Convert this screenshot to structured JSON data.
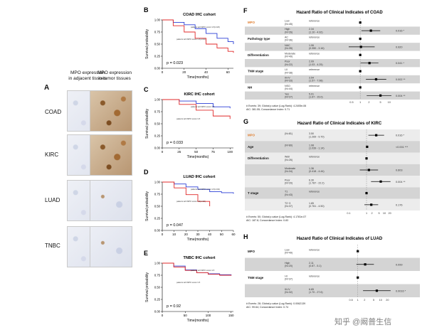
{
  "panelA": {
    "letter": "A",
    "col_adjacent": "MPO expression\nin adjacent tissues",
    "col_tumor": "MPO expression\nin tumor tissues",
    "rows": [
      "COAD",
      "KIRC",
      "LUAD",
      "TNBC"
    ]
  },
  "km": [
    {
      "letter": "B",
      "title": "COAD IHC cohort",
      "ylabel": "Survival probability",
      "xlabel": "Time(months)",
      "pvalue": "p = 0.023",
      "xticks": [
        "0",
        "20",
        "40",
        "60"
      ],
      "yticks": [
        "0.00",
        "0.25",
        "0.50",
        "0.75",
        "1.00"
      ],
      "legend_blue": "patients with MPO score>1.5(n=26)",
      "legend_red": "patients with MPO score<1.5(n=45)",
      "chart_data": {
        "type": "line",
        "xlim": [
          0,
          65
        ],
        "ylim": [
          0,
          1
        ],
        "series": [
          {
            "color": "#2b3fd6",
            "x": [
              0,
              10,
              20,
              30,
              40,
              50,
              60,
              65
            ],
            "y": [
              1.0,
              0.95,
              0.9,
              0.82,
              0.72,
              0.62,
              0.55,
              0.5
            ]
          },
          {
            "color": "#e02828",
            "x": [
              0,
              10,
              20,
              30,
              40,
              50,
              60,
              65
            ],
            "y": [
              1.0,
              0.88,
              0.75,
              0.62,
              0.5,
              0.42,
              0.35,
              0.32
            ]
          }
        ]
      }
    },
    {
      "letter": "C",
      "title": "KIRC IHC cohort",
      "ylabel": "Survival probability",
      "xlabel": "Time(months)",
      "pvalue": "p = 0.033",
      "xticks": [
        "0",
        "25",
        "50",
        "75",
        "100"
      ],
      "yticks": [
        "0.00",
        "0.25",
        "0.50",
        "0.75",
        "1.00"
      ],
      "legend_blue": "patients with MPO score>1.5",
      "legend_red": "patients with MPO score<1.5",
      "chart_data": {
        "type": "line",
        "xlim": [
          0,
          105
        ],
        "ylim": [
          0,
          1
        ],
        "series": [
          {
            "color": "#2b3fd6",
            "x": [
              0,
              25,
              50,
              75,
              100
            ],
            "y": [
              1.0,
              0.97,
              0.92,
              0.85,
              0.82
            ]
          },
          {
            "color": "#e02828",
            "x": [
              0,
              25,
              50,
              75,
              100
            ],
            "y": [
              1.0,
              0.9,
              0.78,
              0.66,
              0.6
            ]
          }
        ]
      }
    },
    {
      "letter": "D",
      "title": "LUAD IHC cohort",
      "ylabel": "Survival probability",
      "xlabel": "Time(months)",
      "pvalue": "p = 0.047",
      "xticks": [
        "0",
        "10",
        "20",
        "30",
        "40",
        "50",
        "60"
      ],
      "yticks": [
        "0.00",
        "0.25",
        "0.50",
        "0.75",
        "1.00"
      ],
      "legend_blue": "patients with MPO score>1.5(n=49)",
      "legend_red": "patients with MPO score<1.5(n=20)",
      "chart_data": {
        "type": "line",
        "xlim": [
          0,
          60
        ],
        "ylim": [
          0,
          1
        ],
        "series": [
          {
            "color": "#2b3fd6",
            "x": [
              0,
              10,
              20,
              30,
              40,
              50,
              60
            ],
            "y": [
              1.0,
              0.96,
              0.9,
              0.85,
              0.8,
              0.78,
              0.76
            ]
          },
          {
            "color": "#e02828",
            "x": [
              0,
              10,
              20,
              30,
              40
            ],
            "y": [
              1.0,
              0.88,
              0.74,
              0.6,
              0.5
            ]
          }
        ]
      }
    },
    {
      "letter": "E",
      "title": "TNBC IHC cohort",
      "ylabel": "Survival probability",
      "xlabel": "Time(months)",
      "pvalue": "p = 0.92",
      "xticks": [
        "0",
        "50",
        "100",
        "150"
      ],
      "yticks": [
        "0.00",
        "0.25",
        "0.50",
        "0.75",
        "1.00"
      ],
      "legend_blue": "patients with MPO score>1.5",
      "legend_red": "patients with MPO score<1.5",
      "chart_data": {
        "type": "line",
        "xlim": [
          0,
          155
        ],
        "ylim": [
          0,
          1
        ],
        "series": [
          {
            "color": "#2b3fd6",
            "x": [
              0,
              25,
              50,
              75,
              100,
              125,
              150
            ],
            "y": [
              1.0,
              0.94,
              0.86,
              0.8,
              0.78,
              0.76,
              0.75
            ]
          },
          {
            "color": "#e02828",
            "x": [
              0,
              25,
              50,
              75,
              100,
              125,
              150
            ],
            "y": [
              1.0,
              0.92,
              0.85,
              0.8,
              0.77,
              0.75,
              0.74
            ]
          }
        ]
      }
    }
  ],
  "forest": [
    {
      "letter": "F",
      "title": "Hazard Ratio of Clinical Indicates of COAD",
      "footer1": "# Events: 39; Global p-value (Log-Rank): 4.2405e-06",
      "footer2": "AIC: 381.55; Concordance Index: 0.71",
      "xticks": [
        "0.5",
        "1",
        "2",
        "5",
        "10"
      ],
      "rows": [
        {
          "group": "MPO",
          "highlight": true,
          "level": "Low\n(N=45)",
          "hr": "reference",
          "p": "",
          "est": null
        },
        {
          "group": "",
          "level": "High\n(N=26)",
          "hr": "2.34\n(1.10 - 4.92)",
          "p": "0.016 *",
          "est": 2.34,
          "lo": 1.1,
          "hi": 4.92
        },
        {
          "group": "Pathology type",
          "level": "AC\n(N=36)",
          "hr": "reference",
          "p": "",
          "est": null
        },
        {
          "group": "",
          "level": "NAC\n(N=35)",
          "hr": "1.06\n(0.350 - 3.16)",
          "p": "0.920",
          "est": 1.06,
          "lo": 0.35,
          "hi": 3.16
        },
        {
          "group": "Differentiation",
          "level": "Moderate\n(N=49)",
          "hr": "reference",
          "p": "",
          "est": null
        },
        {
          "group": "",
          "level": "Poor\n(N=22)",
          "hr": "2.09\n(1.03 - 4.25)",
          "p": "0.041 *",
          "est": 2.09,
          "lo": 1.03,
          "hi": 4.25
        },
        {
          "group": "TNM stage",
          "level": "I-II\n(N=38)",
          "hr": "reference",
          "p": "",
          "est": null
        },
        {
          "group": "",
          "level": "III-IV\n(N=33)",
          "hr": "3.54\n(1.57 - 7.98)",
          "p": "0.002 **",
          "est": 3.54,
          "lo": 1.57,
          "hi": 7.98
        },
        {
          "group": "NH",
          "level": "NSO\n(N=44)",
          "hr": "reference",
          "p": "",
          "est": null
        },
        {
          "group": "",
          "level": "Yes\n(N=27)",
          "hr": "5.01\n(1.67 - 15.0)",
          "p": "0.004 **",
          "est": 5.01,
          "lo": 1.67,
          "hi": 15.0
        }
      ],
      "chart_data": {
        "type": "forest",
        "scale": "log",
        "xlim": [
          0.4,
          12
        ],
        "ref": 1
      }
    },
    {
      "letter": "G",
      "title": "Hazard Ratio of Clinical Indicates of KIRC",
      "footer1": "# Events: 50; Global p-value (Log-Rank): 4.1781e-07",
      "footer2": "AIC: 187.8; Concordance Index: 0.83",
      "xticks": [
        "0.1",
        "1",
        "2",
        "5",
        "10",
        "20"
      ],
      "rows": [
        {
          "group": "MPO",
          "highlight": true,
          "level": "(N=81)",
          "hr": "3.50\n(1.269 - 9.70)",
          "p": "0.016 *",
          "est": 3.5,
          "lo": 1.269,
          "hi": 9.7
        },
        {
          "group": "Age",
          "level": "(N=80)",
          "hr": "1.08\n(1.039 - 1.14)",
          "p": "<0.001 ***",
          "est": 1.08,
          "lo": 1.039,
          "hi": 1.14
        },
        {
          "group": "Differentiation",
          "level": "Well\n(N=26)",
          "hr": "reference",
          "p": "",
          "est": null
        },
        {
          "group": "",
          "level": "Moderate\n(N=34)",
          "hr": "1.36\n(0.418 - 4.44)",
          "p": "0.603",
          "est": 1.36,
          "lo": 0.418,
          "hi": 4.44
        },
        {
          "group": "",
          "level": "Poor\n(N=20)",
          "hr": "6.30\n(1.787 - 22.2)",
          "p": "0.004 **",
          "est": 6.3,
          "lo": 1.787,
          "hi": 22.2
        },
        {
          "group": "T stage",
          "level": "T1\n(N=43)",
          "hr": "reference",
          "p": "",
          "est": null
        },
        {
          "group": "",
          "level": "T2~3\n(N=37)",
          "hr": "1.85\n(0.761 - 4.50)",
          "p": "0.176",
          "est": 1.85,
          "lo": 0.761,
          "hi": 4.5
        }
      ],
      "chart_data": {
        "type": "forest",
        "scale": "log",
        "xlim": [
          0.1,
          25
        ],
        "ref": 1
      }
    },
    {
      "letter": "H",
      "title": "Hazard Ratio of Clinical Indicates of LUAD",
      "footer1": "# Events: 28; Global p-value (Log-Rank): 0.0062139",
      "footer2": "AIC: 99.64; Concordance Index: 0.74",
      "xticks": [
        "0.5",
        "1",
        "2",
        "5",
        "10",
        "20"
      ],
      "rows": [
        {
          "group": "MPO",
          "level": "Low\n(N=49)",
          "hr": "reference",
          "p": "",
          "est": null
        },
        {
          "group": "",
          "level": "High\n(N=20)",
          "hr": "2.11\n(0.87 - 5.1)",
          "p": "0.099",
          "est": 2.11,
          "lo": 0.87,
          "hi": 5.1
        },
        {
          "group": "TNM stage",
          "level": "I-II\n(N=37)",
          "hr": "reference",
          "p": "",
          "est": null
        },
        {
          "group": "",
          "level": "III-IV\n(N=32)",
          "hr": "6.85\n(1.70 - 27.6)",
          "p": "0.0016 *",
          "est": 6.85,
          "lo": 1.7,
          "hi": 27.6
        }
      ],
      "chart_data": {
        "type": "forest",
        "scale": "log",
        "xlim": [
          0.4,
          30
        ],
        "ref": 1
      }
    }
  ],
  "watermark": "知乎 @阚普生信"
}
